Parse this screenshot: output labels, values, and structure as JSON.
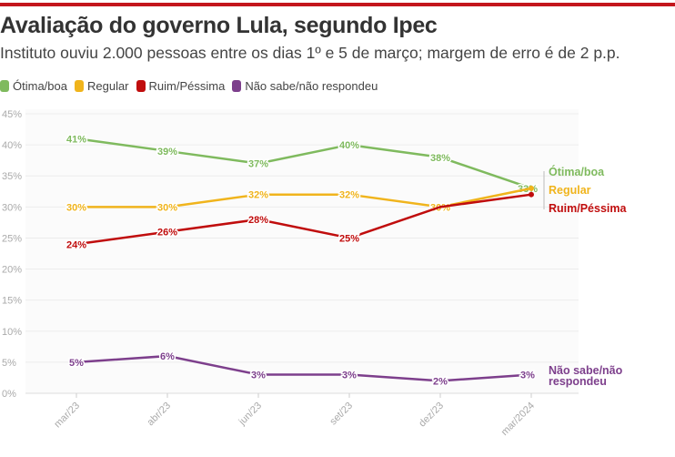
{
  "title": "Avaliação do governo Lula, segundo Ipec",
  "subtitle": "Instituto ouviu 2.000 pessoas entre os dias 1º e 5 de março; margem de erro é de 2 p.p.",
  "chart_data": {
    "type": "line",
    "categories": [
      "mar/23",
      "abr/23",
      "jun/23",
      "set/23",
      "dez/23",
      "mar/2024"
    ],
    "ylim": [
      0,
      45
    ],
    "yticks": [
      "0%",
      "5%",
      "10%",
      "15%",
      "20%",
      "25%",
      "30%",
      "35%",
      "40%",
      "45%"
    ],
    "grid": true,
    "legend": "top-left",
    "series": [
      {
        "name": "Ótima/boa",
        "end_label": "Ótima/boa",
        "color": "#7fba5e",
        "values": [
          41,
          39,
          37,
          40,
          38,
          33
        ]
      },
      {
        "name": "Regular",
        "end_label": "Regular",
        "color": "#f0b41c",
        "values": [
          30,
          30,
          32,
          32,
          30,
          33
        ]
      },
      {
        "name": "Ruim/Péssima",
        "end_label": "Ruim/Péssima",
        "color": "#c00d0d",
        "values": [
          24,
          26,
          28,
          25,
          30,
          32
        ]
      },
      {
        "name": "Não sabe/não respondeu",
        "end_label": "Não sabe/não respondeu",
        "color": "#7d3f8c",
        "values": [
          5,
          6,
          3,
          3,
          2,
          3
        ]
      }
    ]
  }
}
